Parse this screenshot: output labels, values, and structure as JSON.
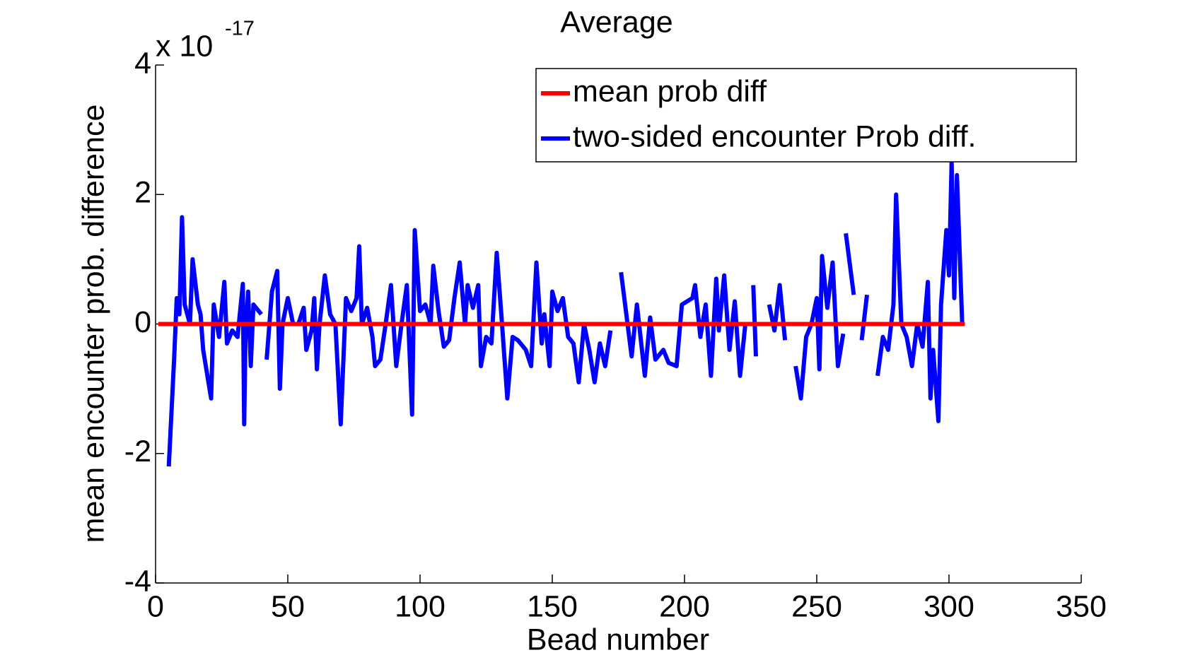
{
  "chart_data": {
    "type": "line",
    "title": "Average",
    "xlabel": "Bead number",
    "ylabel": "mean encounter prob. difference",
    "y_multiplier_base": "x 10",
    "y_multiplier_exponent": "-17",
    "xlim": [
      0,
      350
    ],
    "xticks": [
      0,
      50,
      100,
      150,
      200,
      250,
      300,
      350
    ],
    "ylim": [
      -4,
      4
    ],
    "yticks": [
      -4,
      -2,
      0,
      2,
      4
    ],
    "grid": false,
    "legend": "top-right",
    "series": [
      {
        "name": "mean prob diff",
        "color": "#ff0000",
        "x": [
          1,
          306
        ],
        "values": [
          0,
          0
        ]
      },
      {
        "name": "two-sided encounter Prob diff.",
        "color": "#0000ff",
        "x": [
          5,
          7,
          8,
          9,
          10,
          11,
          13,
          14,
          16,
          17,
          18,
          19,
          21,
          22,
          24,
          26,
          27,
          29,
          31,
          33,
          33.5,
          34,
          35,
          36,
          37,
          40,
          41,
          42,
          44,
          46,
          47,
          48,
          50,
          52,
          54,
          56,
          57,
          59,
          60,
          61,
          62,
          64,
          66,
          68,
          70,
          72,
          74,
          76,
          77,
          78,
          80,
          82,
          83,
          85,
          87,
          89,
          91,
          93,
          95,
          97,
          98,
          100,
          102,
          104,
          105,
          107,
          109,
          111,
          113,
          115,
          117,
          118,
          120,
          122,
          123,
          125,
          127,
          129,
          131,
          133,
          135,
          137,
          140,
          142,
          144,
          146,
          147,
          149,
          150,
          152,
          154,
          156,
          158,
          160,
          162,
          164,
          166,
          168,
          170,
          172,
          174,
          176,
          178,
          180,
          182,
          185,
          187,
          189,
          192,
          194,
          197,
          199,
          203,
          204,
          206,
          208,
          210,
          212,
          213,
          215,
          217,
          219,
          221,
          223,
          225,
          226,
          227,
          230,
          232,
          234,
          236,
          238,
          240,
          242,
          244,
          246,
          248,
          250,
          251,
          252,
          254,
          256,
          258,
          260,
          260.5,
          261,
          264,
          265,
          267,
          269,
          271,
          273,
          275,
          277,
          279,
          280,
          282,
          284,
          286,
          288,
          290,
          292,
          293,
          294,
          296,
          297,
          299,
          300,
          301,
          302,
          303,
          305
        ],
        "values": [
          -2.2,
          -0.55,
          0.4,
          0.15,
          1.65,
          0.3,
          0,
          1.0,
          0.3,
          0.15,
          -0.4,
          -0.65,
          -1.15,
          0.3,
          -0.2,
          0.65,
          -0.3,
          -0.1,
          -0.2,
          0.62,
          -1.55,
          -0.2,
          0.5,
          -0.65,
          0.3,
          0.15,
          null,
          -0.55,
          0.5,
          0.82,
          -1.0,
          0,
          0.4,
          0,
          0,
          0.25,
          -0.4,
          -0.1,
          0.4,
          -0.7,
          0,
          0.75,
          0.15,
          0,
          -1.55,
          0.4,
          0.2,
          0.4,
          1.2,
          0,
          0.25,
          -0.2,
          -0.65,
          -0.55,
          0,
          0.6,
          -0.65,
          0,
          0.6,
          -1.4,
          1.45,
          0.2,
          0.3,
          0,
          0.9,
          0.2,
          -0.35,
          -0.25,
          0.4,
          0.95,
          0,
          0.6,
          0.25,
          0.6,
          -0.65,
          -0.2,
          -0.3,
          1.1,
          0,
          -1.15,
          -0.2,
          -0.25,
          -0.4,
          -0.65,
          0.95,
          -0.3,
          0.15,
          -0.65,
          0.5,
          0.2,
          0.4,
          -0.2,
          -0.3,
          -0.9,
          0,
          -0.4,
          -0.9,
          -0.3,
          -0.65,
          -0.1,
          null,
          0.8,
          0.15,
          -0.5,
          0.3,
          -0.8,
          0.1,
          -0.55,
          -0.4,
          -0.6,
          -0.65,
          0.3,
          0.4,
          0.6,
          -0.2,
          0.3,
          -0.8,
          0.7,
          -0.1,
          0.75,
          -0.4,
          0.35,
          -0.8,
          0,
          null,
          0.6,
          -0.5,
          null,
          0.3,
          -0.1,
          0.6,
          -0.25,
          null,
          -0.65,
          -1.15,
          -0.2,
          0,
          0.4,
          -0.7,
          1.05,
          0.25,
          0.95,
          -0.65,
          -0.15,
          null,
          1.4,
          0.45,
          null,
          -0.25,
          0.45,
          null,
          -0.8,
          -0.2,
          -0.4,
          0.3,
          2.0,
          0,
          -0.2,
          -0.65,
          0,
          -0.35,
          0.65,
          -1.15,
          -0.4,
          -1.5,
          0.3,
          1.45,
          0.75,
          2.5,
          0.4,
          2.3,
          0
        ]
      }
    ]
  }
}
